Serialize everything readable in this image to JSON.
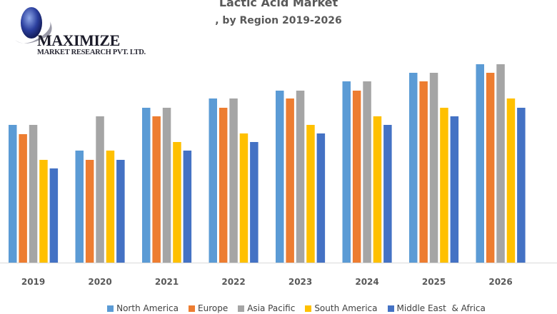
{
  "logo": {
    "name": "MAXIMIZE",
    "subtitle": "MARKET RESEARCH PVT. LTD."
  },
  "chart_data": {
    "type": "bar",
    "title": "Lactic Acid Market",
    "subtitle": ", by Region 2019-2026",
    "xlabel": "",
    "ylabel": "",
    "ylim": [
      0,
      300
    ],
    "grid": false,
    "legend_position": "bottom",
    "categories": [
      "2019",
      "2020",
      "2021",
      "2022",
      "2023",
      "2024",
      "2025",
      "2026"
    ],
    "series": [
      {
        "name": "North America",
        "color": "#5B9BD5",
        "values": [
          193,
          157,
          217,
          230,
          241,
          254,
          266,
          278
        ]
      },
      {
        "name": "Europe",
        "color": "#ED7D31",
        "values": [
          180,
          144,
          205,
          217,
          230,
          241,
          254,
          266
        ]
      },
      {
        "name": "Asia Pacific",
        "color": "#A5A5A5",
        "values": [
          193,
          205,
          217,
          230,
          241,
          254,
          266,
          278
        ]
      },
      {
        "name": "South America",
        "color": "#FFC000",
        "values": [
          144,
          157,
          169,
          181,
          193,
          205,
          217,
          230
        ]
      },
      {
        "name": "Middle East  & Africa",
        "color": "#4472C4",
        "values": [
          132,
          144,
          157,
          169,
          181,
          193,
          205,
          217
        ]
      }
    ]
  }
}
